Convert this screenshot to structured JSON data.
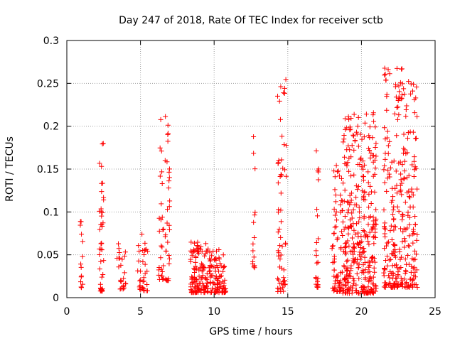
{
  "chart_data": {
    "type": "scatter",
    "title": "Day 247 of 2018, Rate Of TEC Index for receiver sctb",
    "xlabel": "GPS time / hours",
    "ylabel": "ROTI / TECUs",
    "xlim": [
      0,
      25
    ],
    "ylim": [
      0,
      0.3
    ],
    "xticks": [
      0,
      5,
      10,
      15,
      20,
      25
    ],
    "xtick_labels": [
      "0",
      "5",
      "10",
      "15",
      "20",
      "25"
    ],
    "yticks": [
      0,
      0.05,
      0.1,
      0.15,
      0.2,
      0.25,
      0.3
    ],
    "ytick_labels": [
      "0",
      "0.05",
      "0.1",
      "0.15",
      "0.2",
      "0.25",
      "0.3"
    ],
    "grid": true,
    "marker": "+",
    "color": "#ff0000",
    "series": [
      {
        "name": "ROTI",
        "clusters": [
          {
            "x_range": [
              0.9,
              1.1
            ],
            "y_range": [
              0.01,
              0.107
            ],
            "count": 14
          },
          {
            "x_range": [
              2.2,
              2.5
            ],
            "y_range": [
              0.007,
              0.193
            ],
            "count": 45
          },
          {
            "x_range": [
              3.4,
              4.0
            ],
            "y_range": [
              0.01,
              0.068
            ],
            "count": 25
          },
          {
            "x_range": [
              4.8,
              5.5
            ],
            "y_range": [
              0.008,
              0.077
            ],
            "count": 35
          },
          {
            "x_range": [
              6.2,
              7.0
            ],
            "y_range": [
              0.02,
              0.222
            ],
            "count": 60
          },
          {
            "x_range": [
              8.4,
              9.5
            ],
            "y_range": [
              0.006,
              0.065
            ],
            "count": 110
          },
          {
            "x_range": [
              9.5,
              10.8
            ],
            "y_range": [
              0.006,
              0.057
            ],
            "count": 100
          },
          {
            "x_range": [
              12.6,
              12.8
            ],
            "y_range": [
              0.035,
              0.189
            ],
            "count": 15
          },
          {
            "x_range": [
              14.3,
              14.9
            ],
            "y_range": [
              0.007,
              0.26
            ],
            "count": 60
          },
          {
            "x_range": [
              16.9,
              17.1
            ],
            "y_range": [
              0.012,
              0.183
            ],
            "count": 25
          },
          {
            "x_range": [
              18.0,
              18.6
            ],
            "y_range": [
              0.007,
              0.16
            ],
            "count": 60
          },
          {
            "x_range": [
              18.6,
              21.0
            ],
            "y_range": [
              0.005,
              0.216
            ],
            "count": 360
          },
          {
            "x_range": [
              21.5,
              23.8
            ],
            "y_range": [
              0.012,
              0.268
            ],
            "count": 300
          }
        ]
      }
    ]
  }
}
